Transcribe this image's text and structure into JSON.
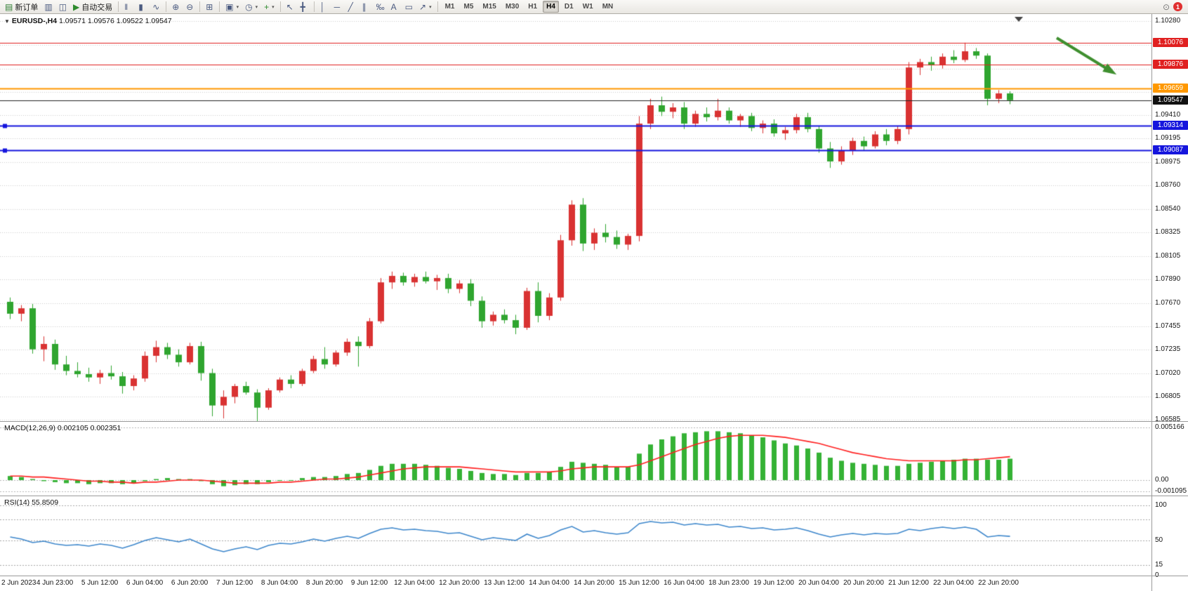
{
  "toolbar": {
    "items": [
      {
        "name": "new-order-button",
        "glyph": "▤",
        "glyph_color": "#2e7d32",
        "label": "新订单"
      },
      {
        "name": "market-watch-button",
        "glyph": "▥"
      },
      {
        "name": "data-window-button",
        "glyph": "◫"
      },
      {
        "name": "auto-trading-button",
        "glyph": "▶",
        "glyph_color": "#2e8b2e",
        "label": "自动交易"
      },
      {
        "sep": true
      },
      {
        "name": "bar-chart-button",
        "glyph": "‖"
      },
      {
        "name": "candlestick-chart-button",
        "glyph": "▮"
      },
      {
        "name": "line-chart-button",
        "glyph": "∿"
      },
      {
        "sep": true
      },
      {
        "name": "zoom-in-button",
        "glyph": "⊕"
      },
      {
        "name": "zoom-out-button",
        "glyph": "⊖"
      },
      {
        "sep": true
      },
      {
        "name": "tile-windows-button",
        "glyph": "⊞"
      },
      {
        "sep": true
      },
      {
        "name": "new-chart-button",
        "glyph": "▣",
        "caret": true
      },
      {
        "name": "autoscroll-button",
        "glyph": "◷",
        "caret": true
      },
      {
        "name": "indicators-button",
        "glyph": "+",
        "glyph_color": "#2e8b2e",
        "caret": true
      },
      {
        "sep": true
      },
      {
        "name": "cursor-button",
        "glyph": "↖"
      },
      {
        "name": "crosshair-button",
        "glyph": "╋"
      },
      {
        "sep": true
      },
      {
        "name": "vertical-line-button",
        "glyph": "│"
      },
      {
        "name": "horizontal-line-button",
        "glyph": "─"
      },
      {
        "name": "trendline-button",
        "glyph": "╱"
      },
      {
        "name": "channel-button",
        "glyph": "∥"
      },
      {
        "name": "fibonacci-button",
        "glyph": "‰"
      },
      {
        "name": "text-button",
        "glyph": "A"
      },
      {
        "name": "label-button",
        "glyph": "▭"
      },
      {
        "name": "arrows-button",
        "glyph": "↗",
        "caret": true
      },
      {
        "sep": true
      }
    ],
    "timeframes": [
      "M1",
      "M5",
      "M15",
      "M30",
      "H1",
      "H4",
      "D1",
      "W1",
      "MN"
    ],
    "active_timeframe": "H4",
    "notification_count": "1"
  },
  "chart": {
    "symbol_period": "EURUSD-,H4",
    "ohlc": "1.09571 1.09576 1.09522 1.09547"
  },
  "macd": {
    "label": "MACD(12,26,9) 0.002105 0.002351"
  },
  "rsi": {
    "label": "RSI(14) 55.8509"
  },
  "chart_data": [
    {
      "type": "candlestick",
      "title": "EURUSD-,H4",
      "ohlc_readout": [
        "1.09571",
        "1.09576",
        "1.09522",
        "1.09547"
      ],
      "colors": {
        "bull": "#d93232",
        "bear": "#2fa52f"
      },
      "y_axis_range": [
        1.06575,
        1.10345
      ],
      "y_ticks": [
        "1.10280",
        "1.09410",
        "1.09195",
        "1.08975",
        "1.08760",
        "1.08540",
        "1.08325",
        "1.08105",
        "1.07890",
        "1.07670",
        "1.07455",
        "1.07235",
        "1.07020",
        "1.06805",
        "1.06585"
      ],
      "y_gridlines": [
        1.1028,
        1.1006,
        1.0984,
        1.09625,
        1.0941,
        1.09195,
        1.08975,
        1.0876,
        1.0854,
        1.08325,
        1.08105,
        1.0789,
        1.0767,
        1.07455,
        1.07235,
        1.0702,
        1.06805,
        1.06585
      ],
      "hlines": [
        {
          "price": 1.10076,
          "label": "1.10076",
          "color": "#e02020",
          "width": 1,
          "handles": false
        },
        {
          "price": 1.09876,
          "label": "1.09876",
          "color": "#e02020",
          "width": 1,
          "handles": false
        },
        {
          "price": 1.09659,
          "label": "1.09659",
          "color": "#ff9800",
          "width": 2,
          "handles": false
        },
        {
          "price": 1.09314,
          "label": "1.09314",
          "color": "#1515dd",
          "width": 2,
          "handles": true
        },
        {
          "price": 1.09087,
          "label": "1.09087",
          "color": "#1515dd",
          "width": 2,
          "handles": true
        }
      ],
      "current_price": {
        "value": 1.09547,
        "label": "1.09547",
        "color": "#222222"
      },
      "annotation_arrow": {
        "from": [
          1505,
          34
        ],
        "to": [
          1580,
          80
        ],
        "color": "#3f8f2f"
      },
      "x_labels": [
        "2 Jun 2023",
        "4 Jun 23:00",
        "5 Jun 12:00",
        "6 Jun 04:00",
        "6 Jun 20:00",
        "7 Jun 12:00",
        "8 Jun 04:00",
        "8 Jun 20:00",
        "9 Jun 12:00",
        "12 Jun 04:00",
        "12 Jun 20:00",
        "13 Jun 12:00",
        "14 Jun 04:00",
        "14 Jun 20:00",
        "15 Jun 12:00",
        "16 Jun 04:00",
        "18 Jun 23:00",
        "19 Jun 12:00",
        "20 Jun 04:00",
        "20 Jun 20:00",
        "21 Jun 12:00",
        "22 Jun 04:00",
        "22 Jun 20:00"
      ],
      "candles_per_label": 4,
      "candles": [
        [
          1.0768,
          1.0772,
          1.0752,
          1.0757
        ],
        [
          1.0757,
          1.0765,
          1.075,
          1.0762
        ],
        [
          1.0762,
          1.0766,
          1.072,
          1.0724
        ],
        [
          1.0724,
          1.0736,
          1.0713,
          1.0729
        ],
        [
          1.0729,
          1.0733,
          1.0705,
          1.071
        ],
        [
          1.071,
          1.0718,
          1.07,
          1.0704
        ],
        [
          1.0704,
          1.0712,
          1.0698,
          1.0701
        ],
        [
          1.0701,
          1.0707,
          1.0694,
          1.0698
        ],
        [
          1.0698,
          1.0705,
          1.0692,
          1.0702
        ],
        [
          1.0702,
          1.0709,
          1.0696,
          1.0699
        ],
        [
          1.0699,
          1.0703,
          1.0683,
          1.069
        ],
        [
          1.069,
          1.07,
          1.0686,
          1.0697
        ],
        [
          1.0697,
          1.0722,
          1.0694,
          1.0718
        ],
        [
          1.0718,
          1.0732,
          1.0712,
          1.0726
        ],
        [
          1.0726,
          1.073,
          1.0715,
          1.0719
        ],
        [
          1.0719,
          1.0724,
          1.0708,
          1.0712
        ],
        [
          1.0712,
          1.073,
          1.071,
          1.0727
        ],
        [
          1.0727,
          1.0731,
          1.0695,
          1.0702
        ],
        [
          1.0702,
          1.0706,
          1.0662,
          1.0672
        ],
        [
          1.0672,
          1.0686,
          1.066,
          1.068
        ],
        [
          1.068,
          1.0692,
          1.0674,
          1.069
        ],
        [
          1.069,
          1.0694,
          1.0682,
          1.0684
        ],
        [
          1.0684,
          1.0687,
          1.0655,
          1.067
        ],
        [
          1.067,
          1.0688,
          1.0668,
          1.0686
        ],
        [
          1.0686,
          1.0698,
          1.0684,
          1.0696
        ],
        [
          1.0696,
          1.07,
          1.0688,
          1.0692
        ],
        [
          1.0692,
          1.0706,
          1.069,
          1.0704
        ],
        [
          1.0704,
          1.0718,
          1.0702,
          1.0715
        ],
        [
          1.0715,
          1.0726,
          1.0706,
          1.071
        ],
        [
          1.071,
          1.0723,
          1.0708,
          1.0721
        ],
        [
          1.0721,
          1.0734,
          1.0718,
          1.0731
        ],
        [
          1.0731,
          1.0736,
          1.0708,
          1.0727
        ],
        [
          1.0727,
          1.0753,
          1.0725,
          1.075
        ],
        [
          1.075,
          1.079,
          1.0748,
          1.0786
        ],
        [
          1.0786,
          1.0796,
          1.078,
          1.0792
        ],
        [
          1.0792,
          1.0795,
          1.0783,
          1.0786
        ],
        [
          1.0786,
          1.0794,
          1.0782,
          1.0791
        ],
        [
          1.0791,
          1.0796,
          1.0785,
          1.0787
        ],
        [
          1.0787,
          1.0793,
          1.0779,
          1.079
        ],
        [
          1.079,
          1.0794,
          1.0776,
          1.078
        ],
        [
          1.078,
          1.0788,
          1.0776,
          1.0785
        ],
        [
          1.0785,
          1.0789,
          1.0764,
          1.0769
        ],
        [
          1.0769,
          1.0773,
          1.0744,
          1.075
        ],
        [
          1.075,
          1.0759,
          1.0746,
          1.0756
        ],
        [
          1.0756,
          1.0761,
          1.0748,
          1.0751
        ],
        [
          1.0751,
          1.0756,
          1.0738,
          1.0744
        ],
        [
          1.0744,
          1.0781,
          1.0742,
          1.0778
        ],
        [
          1.0778,
          1.0786,
          1.0749,
          1.0755
        ],
        [
          1.0755,
          1.0776,
          1.0751,
          1.0772
        ],
        [
          1.0772,
          1.083,
          1.0769,
          1.0825
        ],
        [
          1.0825,
          1.0862,
          1.082,
          1.0858
        ],
        [
          1.0858,
          1.0864,
          1.0815,
          1.0822
        ],
        [
          1.0822,
          1.0836,
          1.0816,
          1.0832
        ],
        [
          1.0832,
          1.084,
          1.0823,
          1.0828
        ],
        [
          1.0828,
          1.0834,
          1.0817,
          1.0821
        ],
        [
          1.0821,
          1.0831,
          1.0816,
          1.0829
        ],
        [
          1.0829,
          1.094,
          1.0824,
          1.0933
        ],
        [
          1.0933,
          1.0956,
          1.0928,
          1.095
        ],
        [
          1.095,
          1.0958,
          1.094,
          1.0944
        ],
        [
          1.0944,
          1.0952,
          1.0938,
          1.0948
        ],
        [
          1.0948,
          1.0953,
          1.0928,
          1.0933
        ],
        [
          1.0933,
          1.0945,
          1.093,
          1.0942
        ],
        [
          1.0942,
          1.0948,
          1.0935,
          1.0939
        ],
        [
          1.0939,
          1.0956,
          1.0936,
          1.0945
        ],
        [
          1.0945,
          1.0948,
          1.0933,
          1.0936
        ],
        [
          1.0936,
          1.0942,
          1.093,
          1.094
        ],
        [
          1.094,
          1.0943,
          1.0926,
          1.0929
        ],
        [
          1.0929,
          1.0936,
          1.0924,
          1.0933
        ],
        [
          1.0933,
          1.0937,
          1.0921,
          1.0924
        ],
        [
          1.0924,
          1.093,
          1.0918,
          1.0927
        ],
        [
          1.0927,
          1.0942,
          1.0924,
          1.0939
        ],
        [
          1.0939,
          1.0943,
          1.0925,
          1.0928
        ],
        [
          1.0928,
          1.0931,
          1.0906,
          1.091
        ],
        [
          1.091,
          1.0916,
          1.0892,
          1.0898
        ],
        [
          1.0898,
          1.0912,
          1.0895,
          1.0908
        ],
        [
          1.0908,
          1.092,
          1.0904,
          1.0917
        ],
        [
          1.0917,
          1.0921,
          1.0908,
          1.0912
        ],
        [
          1.0912,
          1.0926,
          1.091,
          1.0923
        ],
        [
          1.0923,
          1.0928,
          1.0913,
          1.0917
        ],
        [
          1.0917,
          1.0931,
          1.0914,
          1.0928
        ],
        [
          1.0928,
          1.099,
          1.0923,
          1.0985
        ],
        [
          1.0985,
          1.0993,
          1.0978,
          1.099
        ],
        [
          1.099,
          1.0995,
          1.0982,
          1.0987
        ],
        [
          1.0987,
          1.0998,
          1.0984,
          1.0995
        ],
        [
          1.0995,
          1.1001,
          1.0989,
          1.0992
        ],
        [
          1.0992,
          1.1008,
          1.099,
          1.1
        ],
        [
          1.1,
          1.1003,
          1.0993,
          1.0996
        ],
        [
          1.0996,
          1.0998,
          1.095,
          1.0956
        ],
        [
          1.0956,
          1.0964,
          1.0952,
          1.0961
        ],
        [
          1.0961,
          1.0963,
          1.0951,
          1.09547
        ]
      ]
    },
    {
      "type": "macd",
      "label": "MACD(12,26,9) 0.002105 0.002351",
      "y_ticks": [
        {
          "text": "0.005166",
          "value": 0.005166
        },
        {
          "text": "0.00",
          "value": 0
        },
        {
          "text": "-0.001095",
          "value": -0.001095
        }
      ],
      "bar_color": "#35b235",
      "signal_color": "#ff2020",
      "histogram": [
        0.0004,
        0.0003,
        0.0001,
        -0.0001,
        -0.0002,
        -0.0003,
        -0.0003,
        -0.0004,
        -0.0003,
        -0.0003,
        -0.0004,
        -0.0003,
        -0.0001,
        0.0001,
        0.0002,
        0.0001,
        0.0001,
        -0.0001,
        -0.0004,
        -0.0006,
        -0.0005,
        -0.0004,
        -0.0004,
        -0.0002,
        0.0,
        0.0,
        0.0002,
        0.0003,
        0.0003,
        0.0004,
        0.0006,
        0.0007,
        0.001,
        0.0014,
        0.0016,
        0.0016,
        0.0016,
        0.0015,
        0.0014,
        0.0012,
        0.0011,
        0.0009,
        0.0007,
        0.0006,
        0.0006,
        0.0005,
        0.0007,
        0.0007,
        0.0008,
        0.0013,
        0.0018,
        0.0017,
        0.0016,
        0.0015,
        0.0013,
        0.0013,
        0.0026,
        0.0035,
        0.004,
        0.0043,
        0.0046,
        0.0047,
        0.0048,
        0.0048,
        0.0047,
        0.0046,
        0.0044,
        0.0042,
        0.0039,
        0.0036,
        0.0034,
        0.0031,
        0.0027,
        0.0022,
        0.0019,
        0.0017,
        0.0016,
        0.0015,
        0.0014,
        0.0014,
        0.0016,
        0.0017,
        0.0018,
        0.0019,
        0.002,
        0.0021,
        0.0021,
        0.002,
        0.002,
        0.0021
      ],
      "signal": [
        0.0004,
        0.0004,
        0.0003,
        0.0003,
        0.0002,
        0.0001,
        0.0,
        -0.0001,
        -0.0001,
        -0.0002,
        -0.0002,
        -0.0003,
        -0.0002,
        -0.0002,
        -0.0001,
        0.0,
        0.0,
        0.0,
        -0.0001,
        -0.0002,
        -0.0003,
        -0.0003,
        -0.0003,
        -0.0003,
        -0.0002,
        -0.0002,
        -0.0001,
        0.0,
        0.0001,
        0.0001,
        0.0002,
        0.0003,
        0.0005,
        0.0007,
        0.0009,
        0.0011,
        0.0012,
        0.0013,
        0.0013,
        0.0013,
        0.0013,
        0.0012,
        0.0011,
        0.001,
        0.0009,
        0.0008,
        0.0008,
        0.0008,
        0.0008,
        0.0009,
        0.0011,
        0.0012,
        0.0013,
        0.0013,
        0.0013,
        0.0013,
        0.0015,
        0.0019,
        0.0023,
        0.0027,
        0.0031,
        0.0035,
        0.0038,
        0.0041,
        0.0043,
        0.0044,
        0.0044,
        0.0044,
        0.0043,
        0.0042,
        0.004,
        0.0038,
        0.0036,
        0.0033,
        0.003,
        0.0027,
        0.0025,
        0.0023,
        0.0021,
        0.002,
        0.0019,
        0.0019,
        0.0019,
        0.0019,
        0.0019,
        0.002,
        0.002,
        0.0021,
        0.0022,
        0.0023
      ]
    },
    {
      "type": "rsi",
      "label": "RSI(14) 55.8509",
      "line_color": "#3d87cc",
      "levels": [
        100,
        80,
        50,
        15
      ],
      "y_ticks": [
        {
          "text": "100",
          "value": 100
        },
        {
          "text": "50",
          "value": 50
        },
        {
          "text": "15",
          "value": 15
        },
        {
          "text": "0",
          "value": 0
        }
      ],
      "values": [
        55,
        52,
        47,
        49,
        45,
        43,
        44,
        42,
        45,
        43,
        39,
        44,
        50,
        54,
        51,
        48,
        52,
        45,
        38,
        34,
        38,
        41,
        37,
        43,
        46,
        45,
        48,
        52,
        49,
        53,
        56,
        53,
        60,
        66,
        68,
        65,
        66,
        64,
        63,
        60,
        61,
        56,
        51,
        54,
        52,
        50,
        59,
        53,
        57,
        65,
        70,
        62,
        64,
        61,
        59,
        61,
        74,
        77,
        75,
        76,
        72,
        74,
        72,
        73,
        69,
        70,
        67,
        68,
        65,
        66,
        68,
        64,
        59,
        55,
        58,
        60,
        58,
        60,
        59,
        60,
        66,
        64,
        67,
        69,
        67,
        69,
        66,
        55,
        57,
        55.85
      ]
    }
  ]
}
